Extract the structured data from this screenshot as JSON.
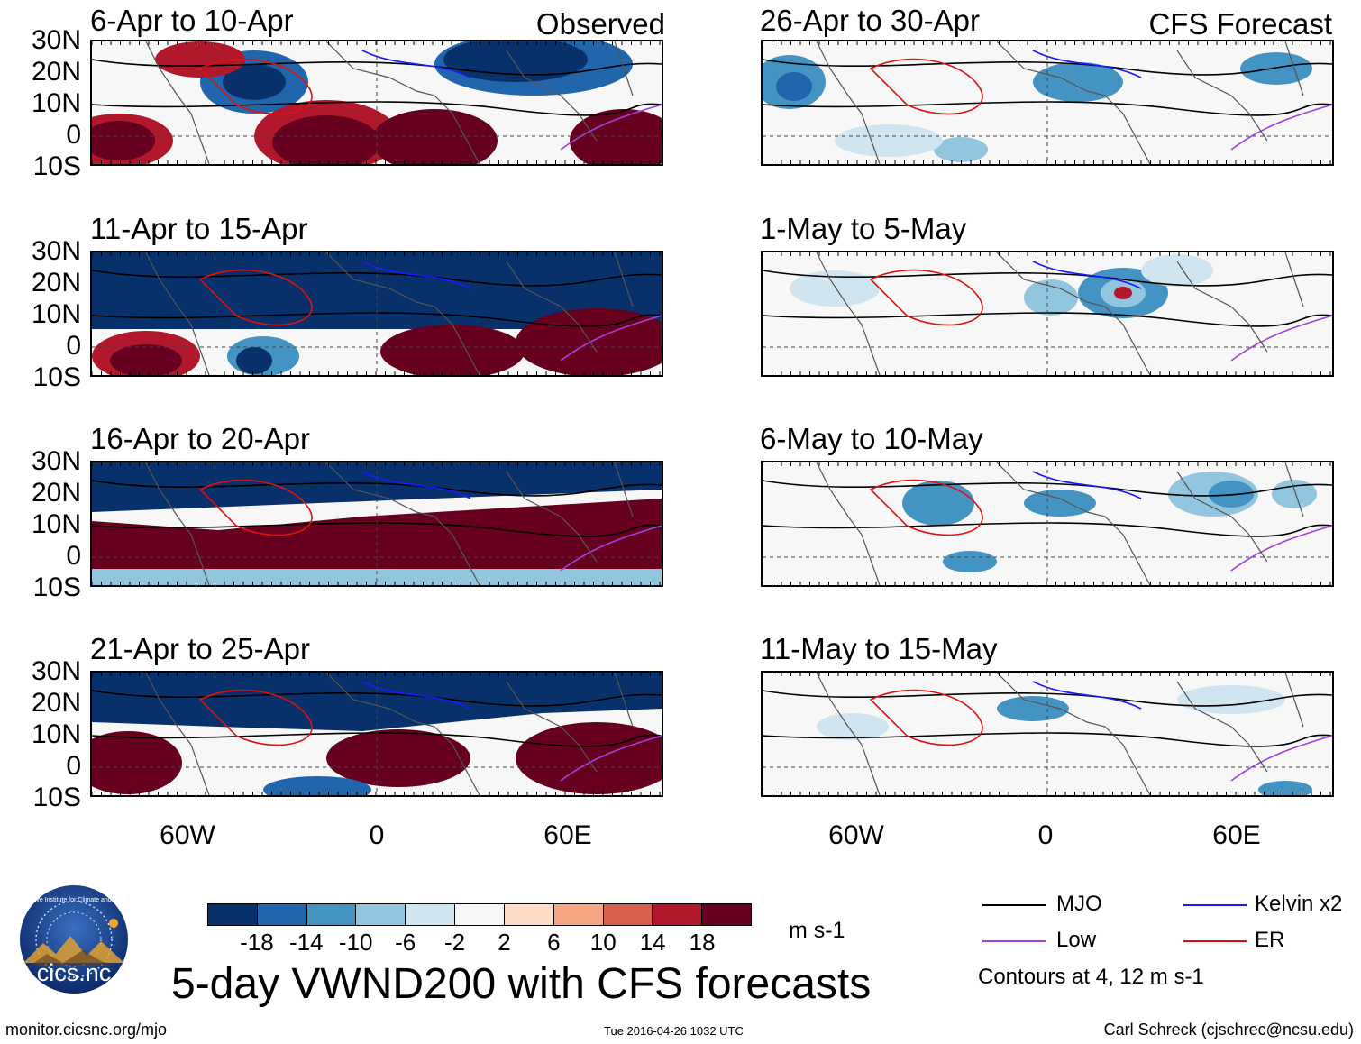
{
  "main_title": "5-day VWND200 with CFS forecasts",
  "column_tags": {
    "observed": "Observed",
    "forecast": "CFS Forecast"
  },
  "lat_labels": [
    "30N",
    "20N",
    "10N",
    "0",
    "10S"
  ],
  "lon_labels": [
    "60W",
    "0",
    "60E"
  ],
  "panels": {
    "obs": [
      {
        "title": "6-Apr to 10-Apr",
        "pattern": "obs1"
      },
      {
        "title": "11-Apr to 15-Apr",
        "pattern": "obs2"
      },
      {
        "title": "16-Apr to 20-Apr",
        "pattern": "obs3"
      },
      {
        "title": "21-Apr to 25-Apr",
        "pattern": "obs4"
      }
    ],
    "fcst": [
      {
        "title": "26-Apr to 30-Apr",
        "pattern": "fc1"
      },
      {
        "title": "1-May to 5-May",
        "pattern": "fc2"
      },
      {
        "title": "6-May to 10-May",
        "pattern": "fc3"
      },
      {
        "title": "11-May to 15-May",
        "pattern": "fc4"
      }
    ]
  },
  "colorbar": {
    "colors": [
      "#08306b",
      "#2166ac",
      "#4393c3",
      "#92c5de",
      "#d1e5f0",
      "#f7f7f7",
      "#fddbc7",
      "#f4a582",
      "#d6604d",
      "#b2182b",
      "#67001f"
    ],
    "labels": [
      "-18",
      "-14",
      "-10",
      "-6",
      "-2",
      "2",
      "6",
      "10",
      "14",
      "18"
    ],
    "units": "m s-1"
  },
  "legend": {
    "mjo": {
      "label": "MJO",
      "color": "#000000"
    },
    "kelvin": {
      "label": "Kelvin x2",
      "color": "#1a1aff"
    },
    "low": {
      "label": "Low",
      "color": "#a040e0"
    },
    "er": {
      "label": "ER",
      "color": "#e01010"
    },
    "note": "Contours at 4, 12 m s-1"
  },
  "logo_text": "cics.nc",
  "logo_ring_text": "Cooperative Institute for Climate and Satellites",
  "footer": {
    "left": "monitor.cicsnc.org/mjo",
    "center": "Tue 2016-04-26 1032 UTC",
    "right": "Carl Schreck (cjschrec@ncsu.edu)"
  }
}
